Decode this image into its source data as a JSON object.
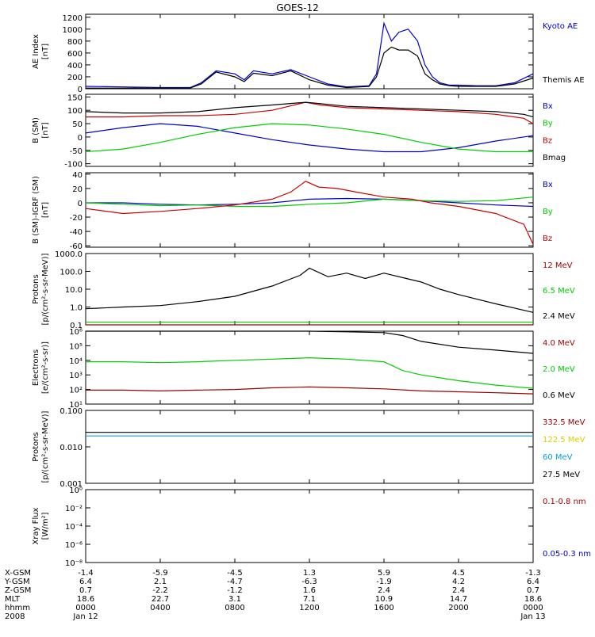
{
  "title": "GOES-12",
  "x_axis": {
    "tick_hours": [
      0,
      4,
      8,
      12,
      16,
      20,
      24
    ],
    "row_labels": [
      "X-GSM",
      "Y-GSM",
      "Z-GSM",
      "MLT",
      "hhmm",
      "2008"
    ],
    "tick_values": [
      [
        "-1.4",
        "6.4",
        "0.7",
        "18.6",
        "0000",
        "Jan 12"
      ],
      [
        "-5.9",
        "2.1",
        "-2.2",
        "22.7",
        "0400",
        ""
      ],
      [
        "-4.5",
        "-4.7",
        "-1.2",
        "3.1",
        "0800",
        ""
      ],
      [
        "1.3",
        "-6.3",
        "1.6",
        "7.1",
        "1200",
        ""
      ],
      [
        "5.9",
        "-1.9",
        "2.4",
        "10.9",
        "1600",
        ""
      ],
      [
        "4.5",
        "4.2",
        "2.4",
        "14.7",
        "2000",
        ""
      ],
      [
        "-1.3",
        "6.4",
        "0.7",
        "18.6",
        "0000",
        "Jan 13"
      ]
    ]
  },
  "chart_data": [
    {
      "type": "line",
      "panel": "ae",
      "ylabel_lines": [
        "AE Index",
        "[nT]"
      ],
      "ylim": [
        0,
        1250
      ],
      "yscale": "linear",
      "yticks": [
        0,
        200,
        400,
        600,
        800,
        1000,
        1200
      ],
      "yticklabels": [
        "0",
        "200",
        "400",
        "600",
        "800",
        "1000",
        "1200"
      ],
      "series": [
        {
          "name": "Kyoto AE",
          "color": "#0000cc",
          "x": [
            0,
            2,
            4,
            5.6,
            6.2,
            7.0,
            8,
            8.5,
            9,
            10,
            11,
            12,
            13,
            14,
            15.2,
            15.6,
            16.0,
            16.4,
            16.8,
            17.3,
            17.8,
            18.2,
            18.6,
            19,
            19.5,
            20,
            21,
            22,
            23,
            24
          ],
          "y": [
            40,
            30,
            20,
            20,
            100,
            300,
            250,
            150,
            300,
            250,
            320,
            200,
            80,
            30,
            50,
            250,
            1100,
            800,
            950,
            1000,
            800,
            400,
            200,
            100,
            60,
            60,
            50,
            50,
            100,
            250
          ]
        },
        {
          "name": "Themis AE",
          "color": "#000000",
          "x": [
            0,
            2,
            4,
            5.6,
            6.2,
            7.0,
            8,
            8.5,
            9,
            10,
            11,
            12,
            13,
            14,
            15.2,
            15.6,
            16.0,
            16.4,
            16.8,
            17.3,
            17.8,
            18.2,
            18.6,
            19,
            19.5,
            20,
            21,
            22,
            23,
            24
          ],
          "y": [
            10,
            10,
            10,
            10,
            80,
            280,
            200,
            120,
            260,
            220,
            300,
            150,
            60,
            20,
            40,
            200,
            600,
            700,
            650,
            650,
            550,
            250,
            150,
            80,
            50,
            40,
            40,
            40,
            80,
            180
          ]
        }
      ]
    },
    {
      "type": "line",
      "panel": "b",
      "ylabel_lines": [
        "B (SM)",
        "[nT]"
      ],
      "ylim": [
        -110,
        160
      ],
      "yscale": "linear",
      "yticks": [
        -100,
        -50,
        0,
        50,
        100,
        150
      ],
      "yticklabels": [
        "-100",
        "-50",
        "0",
        "50",
        "100",
        "150"
      ],
      "series": [
        {
          "name": "Bx",
          "color": "#0000cc",
          "x": [
            0,
            2,
            4,
            6,
            8,
            10,
            12,
            14,
            16,
            18,
            20,
            22,
            24
          ],
          "y": [
            15,
            35,
            50,
            40,
            15,
            -10,
            -30,
            -45,
            -55,
            -55,
            -40,
            -15,
            5
          ]
        },
        {
          "name": "By",
          "color": "#00cc00",
          "x": [
            0,
            2,
            4,
            6,
            8,
            10,
            12,
            14,
            16,
            18,
            20,
            22,
            24
          ],
          "y": [
            -55,
            -45,
            -20,
            10,
            35,
            50,
            45,
            30,
            10,
            -20,
            -45,
            -55,
            -55
          ]
        },
        {
          "name": "Bz",
          "color": "#cc0000",
          "x": [
            0,
            2,
            4,
            6,
            8,
            10,
            11.8,
            12.6,
            14,
            16,
            18,
            20,
            22,
            23.5,
            24
          ],
          "y": [
            75,
            75,
            80,
            80,
            85,
            100,
            130,
            120,
            110,
            105,
            100,
            95,
            85,
            70,
            50
          ]
        },
        {
          "name": "Bmag",
          "color": "#000000",
          "x": [
            0,
            2,
            4,
            6,
            8,
            10,
            11.8,
            12.6,
            14,
            16,
            18,
            20,
            22,
            23.5,
            24
          ],
          "y": [
            95,
            90,
            90,
            95,
            110,
            120,
            130,
            125,
            115,
            110,
            105,
            100,
            95,
            85,
            75
          ]
        }
      ]
    },
    {
      "type": "line",
      "panel": "db",
      "ylabel_lines": [
        "B (SM)-IGRF (SM)",
        "[nT]"
      ],
      "ylim": [
        -62,
        42
      ],
      "yscale": "linear",
      "yticks": [
        -60,
        -40,
        -20,
        0,
        20,
        40
      ],
      "yticklabels": [
        "-60",
        "-40",
        "-20",
        "0",
        "20",
        "40"
      ],
      "series": [
        {
          "name": "Bx",
          "color": "#0000cc",
          "x": [
            0,
            2,
            4,
            6,
            8,
            10,
            12,
            14,
            16,
            18,
            20,
            22,
            24
          ],
          "y": [
            0,
            0,
            -2,
            -3,
            -2,
            0,
            5,
            6,
            5,
            3,
            0,
            -3,
            -5
          ]
        },
        {
          "name": "By",
          "color": "#00cc00",
          "x": [
            0,
            2,
            4,
            6,
            8,
            10,
            12,
            14,
            16,
            18,
            20,
            22,
            24
          ],
          "y": [
            0,
            -2,
            -4,
            -3,
            -5,
            -5,
            -2,
            0,
            5,
            3,
            2,
            3,
            8
          ]
        },
        {
          "name": "Bz",
          "color": "#cc0000",
          "x": [
            0,
            2,
            4,
            6,
            8,
            10,
            11,
            11.8,
            12.5,
            13.5,
            14.5,
            16,
            17.5,
            18.5,
            20,
            22,
            23.5,
            24
          ],
          "y": [
            -8,
            -15,
            -12,
            -8,
            -3,
            5,
            15,
            30,
            22,
            20,
            15,
            8,
            5,
            0,
            -5,
            -15,
            -30,
            -58
          ]
        }
      ]
    },
    {
      "type": "line",
      "panel": "protons",
      "ylabel_lines": [
        "Protons",
        "[p/(cm²-s-sr-MeV)]"
      ],
      "ylim": [
        0.1,
        1000
      ],
      "yscale": "log",
      "yticks": [
        0.1,
        1,
        10,
        100,
        1000
      ],
      "yticklabels": [
        "0.1",
        "1.0",
        "10.0",
        "100.0",
        "1000.0"
      ],
      "series": [
        {
          "name": "12 MeV",
          "color": "#990000",
          "x": [
            0,
            24
          ],
          "y": [
            0.1,
            0.1
          ]
        },
        {
          "name": "6.5 MeV",
          "color": "#00cc00",
          "x": [
            0,
            24
          ],
          "y": [
            0.14,
            0.14
          ]
        },
        {
          "name": "2.4 MeV",
          "color": "#000000",
          "x": [
            0,
            2,
            4,
            6,
            8,
            10,
            11.5,
            12,
            13,
            14,
            15,
            16,
            17.2,
            18,
            19,
            20,
            22,
            24
          ],
          "y": [
            0.8,
            1,
            1.2,
            2,
            4,
            15,
            60,
            150,
            50,
            80,
            40,
            80,
            40,
            25,
            10,
            5,
            1.5,
            0.5
          ]
        }
      ]
    },
    {
      "type": "line",
      "panel": "electrons",
      "ylabel_lines": [
        "Electrons",
        "[e/(cm²-s-sr)]"
      ],
      "ylim": [
        10,
        1000000
      ],
      "yscale": "log",
      "yticks": [
        10,
        100,
        1000,
        10000,
        100000,
        1000000
      ],
      "yticklabels": [
        "10¹",
        "10²",
        "10³",
        "10⁴",
        "10⁵",
        "10⁶"
      ],
      "series": [
        {
          "name": "4.0 MeV",
          "color": "#990000",
          "x": [
            0,
            2,
            4,
            6,
            8,
            10,
            12,
            14,
            16,
            18,
            20,
            22,
            24
          ],
          "y": [
            90,
            90,
            80,
            90,
            100,
            130,
            150,
            130,
            110,
            80,
            70,
            60,
            50
          ]
        },
        {
          "name": "2.0 MeV",
          "color": "#00cc00",
          "x": [
            0,
            2,
            4,
            6,
            8,
            10,
            12,
            14,
            16,
            17,
            18,
            20,
            22,
            24
          ],
          "y": [
            8000,
            8000,
            7000,
            8000,
            10000,
            12000,
            15000,
            12000,
            8000,
            2000,
            1000,
            400,
            200,
            120
          ]
        },
        {
          "name": "0.6 MeV",
          "color": "#000000",
          "x": [
            0,
            2,
            4,
            6,
            8,
            10,
            12,
            14,
            16,
            17,
            18,
            20,
            22,
            24
          ],
          "y": [
            1000000,
            1000000,
            1000000,
            1000000,
            1000000,
            1000000,
            1000000,
            900000,
            800000,
            500000,
            200000,
            80000,
            50000,
            30000
          ]
        }
      ]
    },
    {
      "type": "line",
      "panel": "hiprotons",
      "ylabel_lines": [
        "Protons",
        "[p/(cm²-s-sr-MeV)]"
      ],
      "ylim": [
        0.001,
        0.1
      ],
      "yscale": "log",
      "yticks": [
        0.001,
        0.01,
        0.1
      ],
      "yticklabels": [
        "0.001",
        "0.010",
        "0.100"
      ],
      "series": [
        {
          "name": "332.5 MeV",
          "color": "#990000",
          "x": [],
          "y": []
        },
        {
          "name": "122.5 MeV",
          "color": "#ddcc00",
          "x": [],
          "y": []
        },
        {
          "name": "60 MeV",
          "color": "#00a0e0",
          "x": [
            0,
            24
          ],
          "y": [
            0.02,
            0.02
          ]
        },
        {
          "name": "27.5 MeV",
          "color": "#000000",
          "x": [
            0,
            24
          ],
          "y": [
            0.025,
            0.025
          ]
        }
      ]
    },
    {
      "type": "line",
      "panel": "xray",
      "ylabel_lines": [
        "Xray Flux",
        "[W/m²]"
      ],
      "ylim": [
        1e-08,
        1
      ],
      "yscale": "log",
      "yticks": [
        1e-08,
        1e-06,
        0.0001,
        0.01,
        1
      ],
      "yticklabels": [
        "10⁻⁸",
        "10⁻⁶",
        "10⁻⁴",
        "10⁻²",
        "10⁰"
      ],
      "series": [
        {
          "name": "0.1-0.8 nm",
          "color": "#990000",
          "x": [],
          "y": []
        },
        {
          "name": "0.05-0.3 nm",
          "color": "#0000cc",
          "x": [],
          "y": []
        }
      ]
    }
  ]
}
